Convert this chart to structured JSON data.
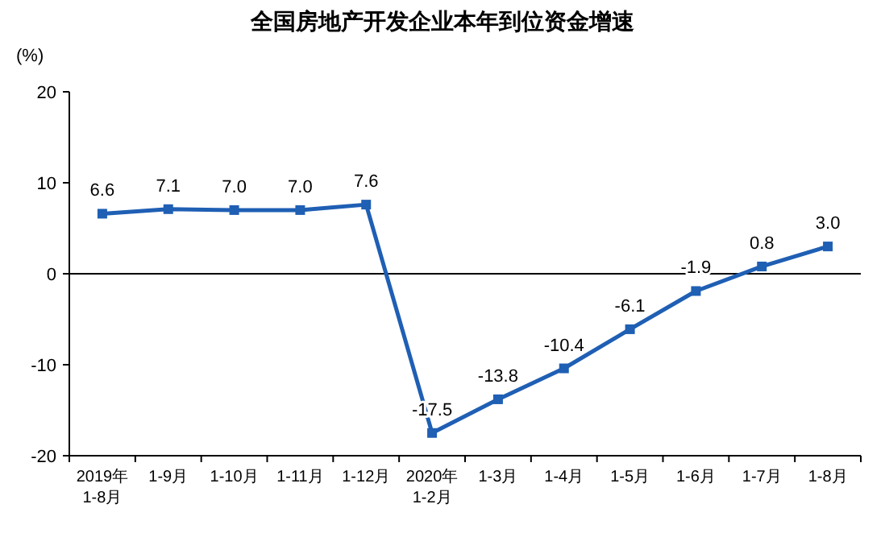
{
  "chart_data": {
    "type": "line",
    "title": "全国房地产开发企业本年到位资金增速",
    "ylabel": "(%)",
    "categories": [
      "2019年\n1-8月",
      "1-9月",
      "1-10月",
      "1-11月",
      "1-12月",
      "2020年\n1-2月",
      "1-3月",
      "1-4月",
      "1-5月",
      "1-6月",
      "1-7月",
      "1-8月"
    ],
    "series": [
      {
        "color": "#1f5fb4",
        "values": [
          6.6,
          7.1,
          7.0,
          7.0,
          7.6,
          -17.5,
          -13.8,
          -10.4,
          -6.1,
          -1.9,
          0.8,
          3.0
        ],
        "value_labels": [
          "6.6",
          "7.1",
          "7.0",
          "7.0",
          "7.6",
          "-17.5",
          "-13.8",
          "-10.4",
          "-6.1",
          "-1.9",
          "0.8",
          "3.0"
        ]
      }
    ],
    "ylim": [
      -20,
      20
    ],
    "yticks": [
      -20,
      -10,
      0,
      10,
      20
    ],
    "marker": "square",
    "line_style": "solid"
  }
}
